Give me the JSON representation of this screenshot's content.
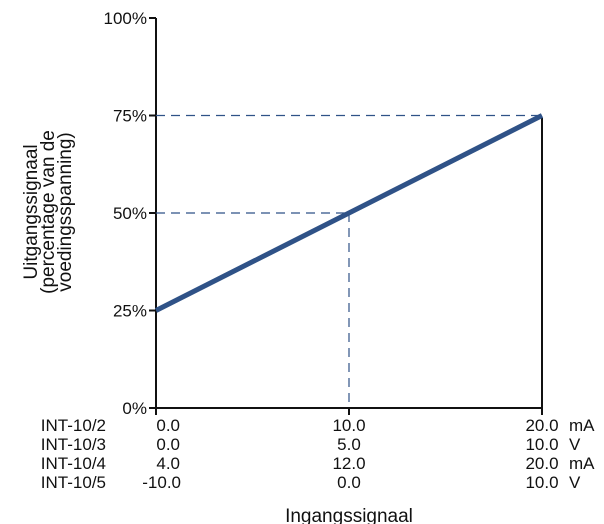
{
  "chart_data": {
    "type": "line",
    "title": "",
    "xlabel": "Ingangssignaal",
    "ylabel_lines": [
      "Uitgangssignaal",
      "(percentage van de",
      "voedingsspanning)"
    ],
    "x": [
      0,
      20
    ],
    "xlim": [
      0,
      20
    ],
    "ylim": [
      0,
      100
    ],
    "yticks": [
      0,
      25,
      50,
      75,
      100
    ],
    "ytick_labels": [
      "0%",
      "25%",
      "50%",
      "75%",
      "100%"
    ],
    "grid": false,
    "series": [
      {
        "x": [
          0,
          20
        ],
        "values": [
          25,
          75
        ]
      }
    ],
    "reference_lines": [
      {
        "x": 10,
        "y": 50
      },
      {
        "x": 20,
        "y": 75
      }
    ],
    "line_color": "#2f5287",
    "guide_color": "#2f5287",
    "signal_table": [
      {
        "model": "INT-10/2",
        "min": "0.0",
        "mid": "10.0",
        "max": "20.0",
        "unit": "mA"
      },
      {
        "model": "INT-10/3",
        "min": "0.0",
        "mid": "5.0",
        "max": "10.0",
        "unit": "V"
      },
      {
        "model": "INT-10/4",
        "min": "4.0",
        "mid": "12.0",
        "max": "20.0",
        "unit": "mA"
      },
      {
        "model": "INT-10/5",
        "min": "-10.0",
        "mid": "0.0",
        "max": "10.0",
        "unit": "V"
      }
    ]
  }
}
